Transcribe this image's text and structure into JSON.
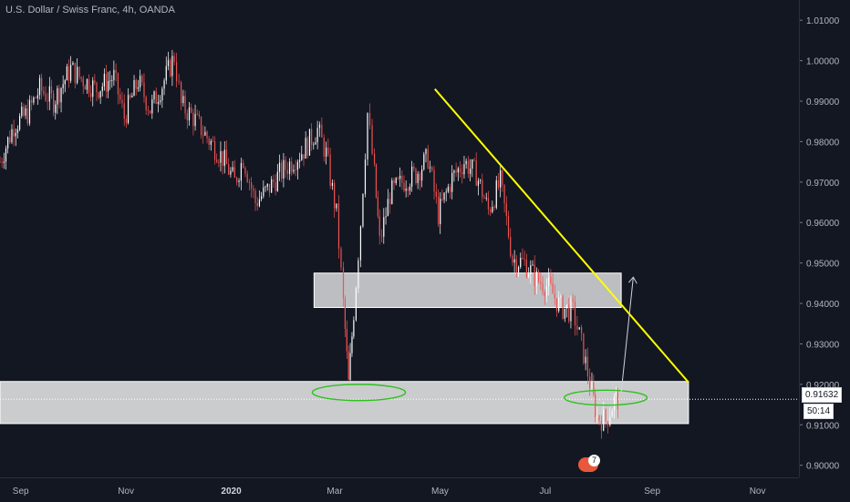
{
  "header": {
    "title": "U.S. Dollar / Swiss Franc, 4h, OANDA"
  },
  "price_axis": {
    "labels": [
      "1.01000",
      "1.00000",
      "0.99000",
      "0.98000",
      "0.97000",
      "0.96000",
      "0.95000",
      "0.94000",
      "0.93000",
      "0.92000",
      "0.91000",
      "0.90000"
    ]
  },
  "time_axis": {
    "labels": [
      "Sep",
      "Nov",
      "2020",
      "Mar",
      "May",
      "Jul",
      "Sep",
      "Nov"
    ]
  },
  "current_price": "0.91632",
  "countdown": "50:14",
  "badge": {
    "count": "7"
  },
  "colors": {
    "background": "#131722",
    "candle_up": "#ffffff",
    "candle_down": "#ef5350",
    "trendline": "#ffff00",
    "ellipse": "#2ec11d",
    "box_fill": "rgba(255,255,255,0.75)"
  },
  "chart_data": {
    "type": "candlestick",
    "title": "U.S. Dollar / Swiss Franc, 4h, OANDA",
    "ylim": [
      0.897,
      1.015
    ],
    "x_range": [
      "2019-08-20",
      "2020-11-25"
    ],
    "series": [
      {
        "name": "USDCHF",
        "points": [
          [
            "2019-08-20",
            0.975
          ],
          [
            "2019-08-28",
            0.984
          ],
          [
            "2019-09-05",
            0.987
          ],
          [
            "2019-09-12",
            0.993
          ],
          [
            "2019-09-20",
            0.99
          ],
          [
            "2019-09-30",
            0.998
          ],
          [
            "2019-10-05",
            0.996
          ],
          [
            "2019-10-15",
            0.993
          ],
          [
            "2019-10-25",
            0.996
          ],
          [
            "2019-10-31",
            0.986
          ],
          [
            "2019-11-08",
            0.995
          ],
          [
            "2019-11-15",
            0.988
          ],
          [
            "2019-11-22",
            0.994
          ],
          [
            "2019-11-29",
            1.001
          ],
          [
            "2019-12-03",
            0.989
          ],
          [
            "2019-12-10",
            0.986
          ],
          [
            "2019-12-18",
            0.981
          ],
          [
            "2019-12-27",
            0.976
          ],
          [
            "2020-01-03",
            0.97
          ],
          [
            "2020-01-08",
            0.976
          ],
          [
            "2020-01-15",
            0.965
          ],
          [
            "2020-01-22",
            0.968
          ],
          [
            "2020-01-29",
            0.972
          ],
          [
            "2020-02-05",
            0.975
          ],
          [
            "2020-02-12",
            0.978
          ],
          [
            "2020-02-20",
            0.983
          ],
          [
            "2020-02-25",
            0.977
          ],
          [
            "2020-03-02",
            0.962
          ],
          [
            "2020-03-06",
            0.94
          ],
          [
            "2020-03-09",
            0.92
          ],
          [
            "2020-03-12",
            0.938
          ],
          [
            "2020-03-16",
            0.96
          ],
          [
            "2020-03-20",
            0.987
          ],
          [
            "2020-03-24",
            0.972
          ],
          [
            "2020-03-27",
            0.955
          ],
          [
            "2020-04-02",
            0.967
          ],
          [
            "2020-04-09",
            0.97
          ],
          [
            "2020-04-17",
            0.972
          ],
          [
            "2020-04-24",
            0.976
          ],
          [
            "2020-04-30",
            0.962
          ],
          [
            "2020-05-08",
            0.971
          ],
          [
            "2020-05-15",
            0.975
          ],
          [
            "2020-05-22",
            0.972
          ],
          [
            "2020-05-29",
            0.963
          ],
          [
            "2020-06-05",
            0.97
          ],
          [
            "2020-06-12",
            0.951
          ],
          [
            "2020-06-19",
            0.95
          ],
          [
            "2020-06-26",
            0.946
          ],
          [
            "2020-07-03",
            0.944
          ],
          [
            "2020-07-10",
            0.939
          ],
          [
            "2020-07-17",
            0.938
          ],
          [
            "2020-07-22",
            0.93
          ],
          [
            "2020-07-28",
            0.918
          ],
          [
            "2020-07-31",
            0.912
          ],
          [
            "2020-08-05",
            0.911
          ],
          [
            "2020-08-10",
            0.916
          ],
          [
            "2020-08-13",
            0.9163
          ]
        ]
      }
    ],
    "annotations": {
      "trendline": {
        "from": [
          "2020-04-28",
          0.993
        ],
        "to": [
          "2020-09-22",
          0.9205
        ]
      },
      "supply_box": {
        "x": [
          "2020-02-18",
          "2020-08-14"
        ],
        "y": [
          0.939,
          0.9475
        ]
      },
      "support_zone": {
        "x": [
          "2019-08-20",
          "2020-09-22"
        ],
        "y": [
          0.9103,
          0.9207
        ]
      },
      "ellipses": [
        {
          "center": [
            "2020-03-15",
            0.918
          ],
          "size": [
            "2020-02-18",
            "2020-04-12",
            0.92,
            0.916
          ]
        },
        {
          "center": [
            "2020-08-05",
            0.9167
          ],
          "size": [
            "2020-07-14",
            "2020-08-31",
            0.9185,
            0.9148
          ]
        }
      ],
      "projection_arrow": {
        "from": [
          "2020-08-14",
          0.918
        ],
        "to": [
          "2020-08-21",
          0.9465
        ]
      }
    }
  }
}
